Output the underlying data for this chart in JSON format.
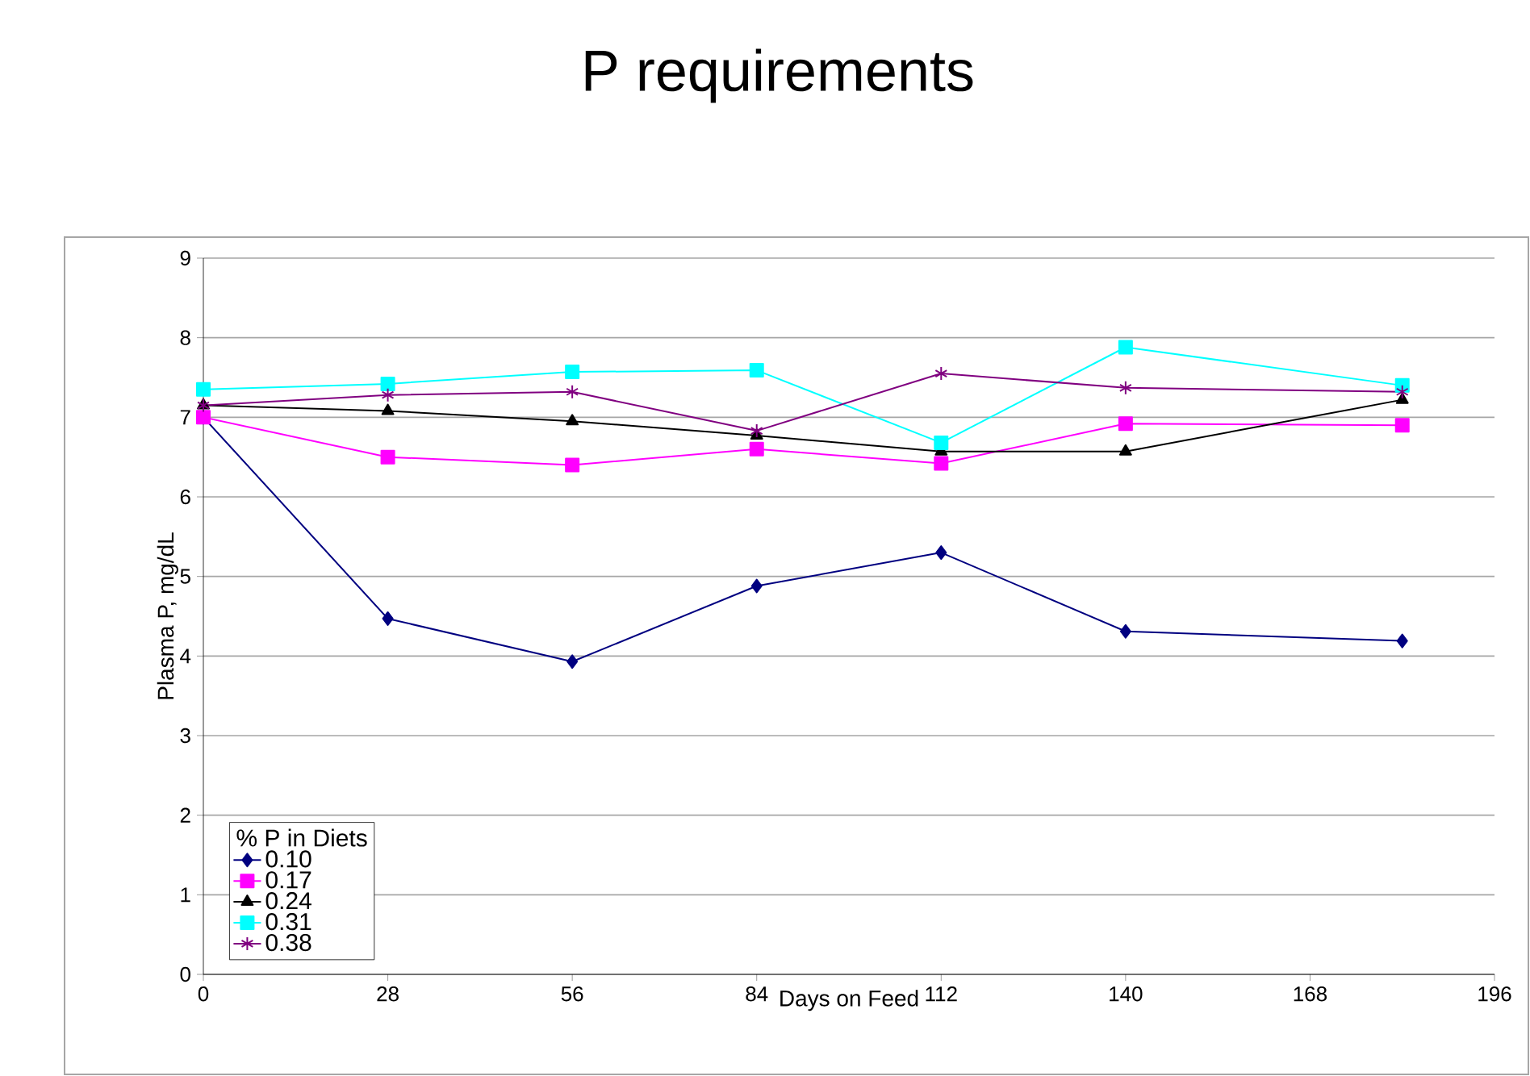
{
  "chart_data": {
    "type": "line",
    "title": "P requirements",
    "xlabel": "Days on Feed",
    "ylabel": "Plasma P, mg/dL",
    "legend_title": "% P in Diets",
    "x": [
      0,
      28,
      56,
      84,
      112,
      140,
      182
    ],
    "series": [
      {
        "name": "0.10",
        "color": "#000080",
        "marker": "diamond",
        "values": [
          7.0,
          4.47,
          3.93,
          4.88,
          5.3,
          4.31,
          4.19
        ]
      },
      {
        "name": "0.17",
        "color": "#ff00ff",
        "marker": "square",
        "values": [
          7.0,
          6.5,
          6.4,
          6.6,
          6.42,
          6.92,
          6.9
        ]
      },
      {
        "name": "0.24",
        "color": "#000000",
        "marker": "triangle",
        "values": [
          7.15,
          7.08,
          6.95,
          6.77,
          6.57,
          6.57,
          7.22
        ]
      },
      {
        "name": "0.31",
        "color": "#00ffff",
        "marker": "square",
        "values": [
          7.35,
          7.42,
          7.57,
          7.59,
          6.68,
          7.88,
          7.4
        ]
      },
      {
        "name": "0.38",
        "color": "#800080",
        "marker": "cross",
        "values": [
          7.15,
          7.28,
          7.32,
          6.83,
          7.55,
          7.37,
          7.32
        ]
      }
    ],
    "xlim": [
      0,
      196
    ],
    "xticks": [
      0,
      28,
      56,
      84,
      112,
      140,
      168,
      196
    ],
    "ylim": [
      0,
      9
    ],
    "yticks": [
      0,
      1,
      2,
      3,
      4,
      5,
      6,
      7,
      8,
      9
    ],
    "grid": "y",
    "legend": "bottom left",
    "line_style": "solid"
  }
}
